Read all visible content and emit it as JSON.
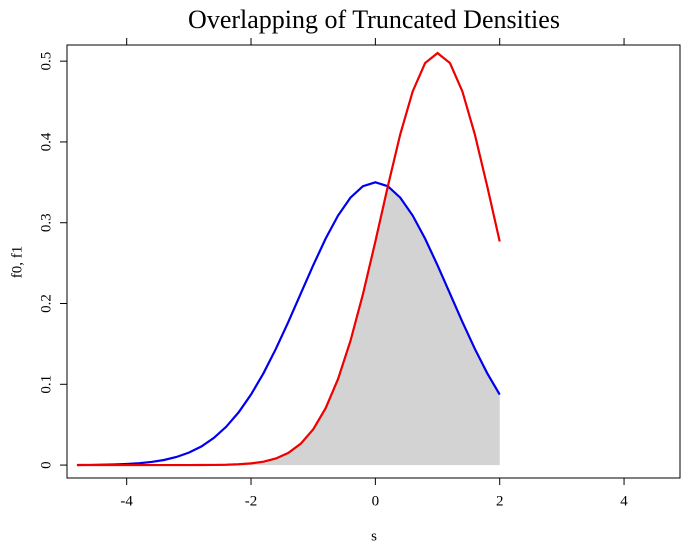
{
  "chart_data": {
    "type": "line",
    "title": "Overlapping of Truncated Densities",
    "xlabel": "s",
    "ylabel": "f0, f1",
    "x": [
      -4.8,
      -4.6,
      -4.4,
      -4.2,
      -4.0,
      -3.8,
      -3.6,
      -3.4,
      -3.2,
      -3.0,
      -2.8,
      -2.6,
      -2.4,
      -2.2,
      -2.0,
      -1.8,
      -1.6,
      -1.4,
      -1.2,
      -1.0,
      -0.8,
      -0.6,
      -0.4,
      -0.2,
      0,
      0.2,
      0.4,
      0.6,
      0.8,
      1.0,
      1.2,
      1.4,
      1.6,
      1.8,
      2.0
    ],
    "series": [
      {
        "color": "#0000ee",
        "values": [
          0.0001,
          0.0002,
          0.0004,
          0.0008,
          0.0014,
          0.0023,
          0.0039,
          0.0063,
          0.01,
          0.0154,
          0.023,
          0.0335,
          0.0474,
          0.0652,
          0.0873,
          0.1136,
          0.1439,
          0.1772,
          0.2123,
          0.2473,
          0.2803,
          0.3089,
          0.3311,
          0.3452,
          0.35,
          0.3452,
          0.3311,
          0.3089,
          0.2803,
          0.2473,
          0.2123,
          0.1772,
          0.1439,
          0.1136,
          0.0873
        ]
      },
      {
        "color": "#ee0000",
        "values": [
          0,
          0,
          0,
          0,
          0,
          0,
          0,
          0,
          0,
          0,
          0.0001,
          0.0002,
          0.0004,
          0.001,
          0.0021,
          0.0042,
          0.0082,
          0.0151,
          0.0265,
          0.0442,
          0.0704,
          0.1066,
          0.1539,
          0.2115,
          0.2768,
          0.3449,
          0.4093,
          0.4625,
          0.4977,
          0.51,
          0.4977,
          0.4625,
          0.4093,
          0.3449,
          0.2768
        ]
      }
    ],
    "overlap_color": "#d3d3d3",
    "xlim": [
      -4.96,
      4.9
    ],
    "ylim": [
      -0.016,
      0.52
    ],
    "xticks": [
      -4,
      -2,
      0,
      2,
      4
    ],
    "yticks": [
      0,
      0.1,
      0.2,
      0.3,
      0.4,
      0.5
    ]
  }
}
